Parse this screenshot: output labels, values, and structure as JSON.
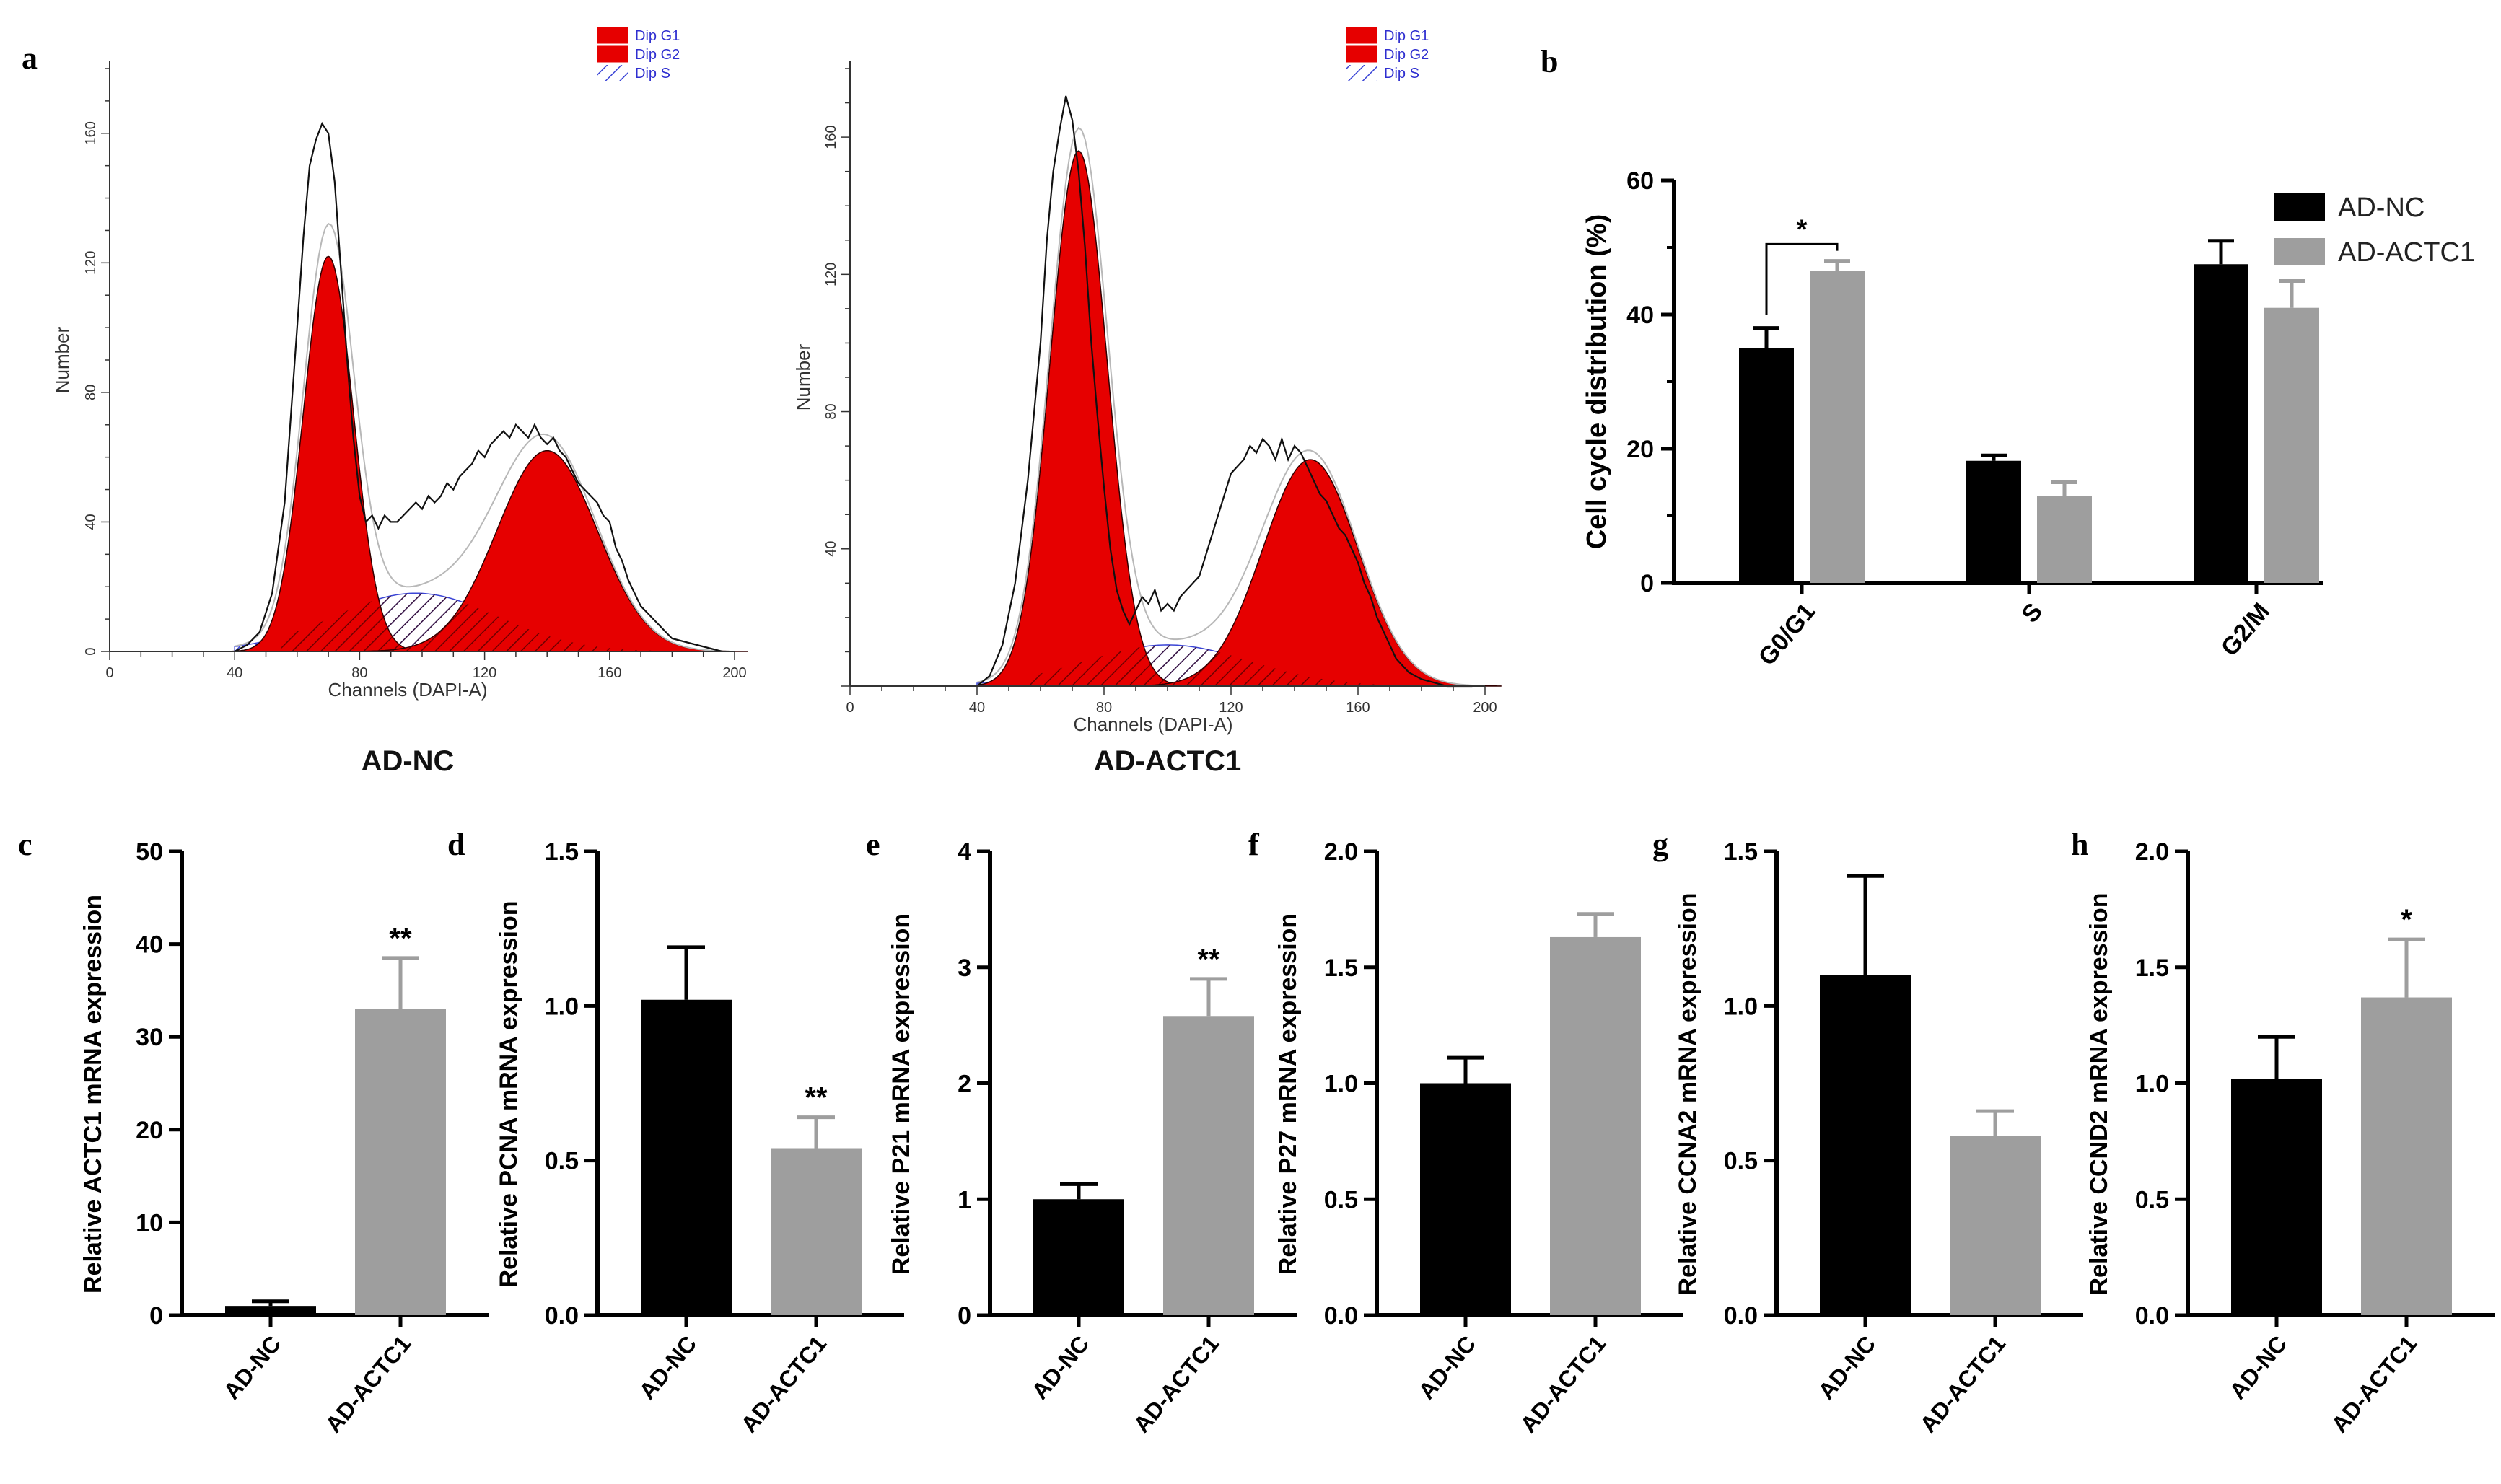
{
  "chart_data": [
    {
      "id": "a1",
      "panel_letter": "a",
      "type": "area",
      "title": "AD-NC",
      "xlabel": "Channels (DAPI-A)",
      "ylabel": "Number",
      "xlim": [
        0,
        200
      ],
      "ylim": [
        0,
        180
      ],
      "xticks": [
        0,
        40,
        80,
        120,
        160,
        200
      ],
      "yticks": [
        0,
        40,
        80,
        120,
        160
      ],
      "legend": [
        "Dip G1",
        "Dip G2",
        "Dip S"
      ],
      "g1": {
        "mu": 70,
        "sd": 8,
        "amp": 122
      },
      "g2": {
        "mu": 140,
        "sd": 16,
        "amp": 62
      },
      "s": {
        "mu": 98,
        "sd": 26,
        "amp": 18
      },
      "raw_x": [
        40,
        44,
        48,
        52,
        56,
        60,
        62,
        64,
        66,
        68,
        70,
        72,
        74,
        76,
        78,
        80,
        82,
        84,
        86,
        88,
        90,
        92,
        94,
        96,
        98,
        100,
        102,
        104,
        106,
        108,
        110,
        112,
        114,
        116,
        118,
        120,
        122,
        124,
        126,
        128,
        130,
        132,
        134,
        136,
        138,
        140,
        142,
        144,
        146,
        148,
        150,
        152,
        154,
        156,
        158,
        160,
        162,
        164,
        166,
        168,
        170,
        172,
        174,
        176,
        178,
        180,
        184,
        188,
        192,
        196
      ],
      "raw_y": [
        0,
        2,
        6,
        18,
        46,
        100,
        128,
        150,
        158,
        163,
        160,
        145,
        118,
        90,
        66,
        48,
        40,
        42,
        38,
        42,
        40,
        40,
        42,
        44,
        46,
        44,
        48,
        46,
        48,
        52,
        50,
        54,
        56,
        58,
        62,
        60,
        64,
        66,
        68,
        66,
        70,
        68,
        66,
        70,
        66,
        64,
        66,
        62,
        60,
        56,
        52,
        50,
        48,
        46,
        42,
        40,
        32,
        28,
        22,
        18,
        14,
        12,
        10,
        8,
        6,
        4,
        3,
        2,
        1,
        0
      ]
    },
    {
      "id": "a2",
      "type": "area",
      "title": "AD-ACTC1",
      "xlabel": "Channels (DAPI-A)",
      "ylabel": "Number",
      "xlim": [
        0,
        200
      ],
      "ylim": [
        0,
        180
      ],
      "xticks": [
        0,
        40,
        80,
        120,
        160,
        200
      ],
      "yticks": [
        40,
        80,
        120,
        160
      ],
      "legend": [
        "Dip G1",
        "Dip G2",
        "Dip S"
      ],
      "g1": {
        "mu": 72,
        "sd": 9,
        "amp": 156
      },
      "g2": {
        "mu": 145,
        "sd": 15,
        "amp": 66
      },
      "s": {
        "mu": 100,
        "sd": 26,
        "amp": 12
      },
      "raw_x": [
        40,
        44,
        48,
        52,
        56,
        60,
        62,
        64,
        66,
        68,
        70,
        72,
        74,
        76,
        78,
        80,
        82,
        84,
        86,
        88,
        90,
        92,
        94,
        96,
        98,
        100,
        102,
        104,
        106,
        108,
        110,
        112,
        114,
        116,
        118,
        120,
        122,
        124,
        126,
        128,
        130,
        132,
        134,
        136,
        138,
        140,
        142,
        144,
        146,
        148,
        150,
        152,
        154,
        156,
        158,
        160,
        162,
        164,
        166,
        168,
        170,
        172,
        174,
        176,
        178,
        180,
        184,
        188,
        192,
        196
      ],
      "raw_y": [
        0,
        3,
        12,
        30,
        60,
        100,
        130,
        150,
        162,
        172,
        165,
        150,
        128,
        100,
        78,
        58,
        40,
        28,
        22,
        18,
        22,
        26,
        24,
        28,
        22,
        24,
        22,
        26,
        28,
        30,
        32,
        38,
        44,
        50,
        56,
        62,
        64,
        66,
        70,
        68,
        72,
        70,
        66,
        72,
        66,
        70,
        68,
        64,
        60,
        56,
        54,
        50,
        46,
        44,
        40,
        36,
        30,
        26,
        20,
        16,
        12,
        8,
        6,
        4,
        3,
        2,
        1,
        0,
        0,
        0
      ]
    },
    {
      "id": "b",
      "panel_letter": "b",
      "type": "bar",
      "categories": [
        "G0/G1",
        "S",
        "G2/M"
      ],
      "series": [
        {
          "name": "AD-NC",
          "color": "#000000",
          "values": [
            35,
            18.2,
            47.5
          ],
          "errors": [
            3,
            0.8,
            3.5
          ]
        },
        {
          "name": "AD-ACTC1",
          "color": "#9e9e9e",
          "values": [
            46.5,
            13,
            41
          ],
          "errors": [
            1.5,
            2,
            4
          ]
        }
      ],
      "ylabel": "Cell cycle distribution (%)",
      "ylim": [
        0,
        60
      ],
      "yticks": [
        0,
        20,
        40,
        60
      ],
      "yticklabels": [
        "0",
        "20",
        "40",
        "60"
      ],
      "significance": "*"
    },
    {
      "id": "c",
      "panel_letter": "c",
      "type": "bar",
      "categories": [
        "AD-NC",
        "AD-ACTC1"
      ],
      "values": [
        1,
        33
      ],
      "errors": [
        0.5,
        5.5
      ],
      "colors": [
        "#000000",
        "#9e9e9e"
      ],
      "ylabel": "Relative ACTC1 mRNA expression",
      "ylim": [
        0,
        50
      ],
      "yticks": [
        0,
        10,
        20,
        30,
        40,
        50
      ],
      "yticklabels": [
        "0",
        "10",
        "20",
        "30",
        "40",
        "50"
      ],
      "significance": [
        null,
        "**"
      ]
    },
    {
      "id": "d",
      "panel_letter": "d",
      "type": "bar",
      "categories": [
        "AD-NC",
        "AD-ACTC1"
      ],
      "values": [
        1.02,
        0.54
      ],
      "errors": [
        0.17,
        0.1
      ],
      "colors": [
        "#000000",
        "#9e9e9e"
      ],
      "ylabel": "Relative PCNA mRNA expression",
      "ylim": [
        0,
        1.5
      ],
      "yticks": [
        0,
        0.5,
        1.0,
        1.5
      ],
      "yticklabels": [
        "0.0",
        "0.5",
        "1.0",
        "1.5"
      ],
      "significance": [
        null,
        "**"
      ]
    },
    {
      "id": "e",
      "panel_letter": "e",
      "type": "bar",
      "categories": [
        "AD-NC",
        "AD-ACTC1"
      ],
      "values": [
        1.0,
        2.58
      ],
      "errors": [
        0.13,
        0.32
      ],
      "colors": [
        "#000000",
        "#9e9e9e"
      ],
      "ylabel": "Relative P21 mRNA expression",
      "ylim": [
        0,
        4
      ],
      "yticks": [
        0,
        1,
        2,
        3,
        4
      ],
      "yticklabels": [
        "0",
        "1",
        "2",
        "3",
        "4"
      ],
      "significance": [
        null,
        "**"
      ]
    },
    {
      "id": "f",
      "panel_letter": "f",
      "type": "bar",
      "categories": [
        "AD-NC",
        "AD-ACTC1"
      ],
      "values": [
        1.0,
        1.63
      ],
      "errors": [
        0.11,
        0.1
      ],
      "colors": [
        "#000000",
        "#9e9e9e"
      ],
      "ylabel": "Relative P27 mRNA expression",
      "ylim": [
        0,
        2.0
      ],
      "yticks": [
        0,
        0.5,
        1.0,
        1.5,
        2.0
      ],
      "yticklabels": [
        "0.0",
        "0.5",
        "1.0",
        "1.5",
        "2.0"
      ],
      "significance": [
        null,
        null
      ]
    },
    {
      "id": "g",
      "panel_letter": "g",
      "type": "bar",
      "categories": [
        "AD-NC",
        "AD-ACTC1"
      ],
      "values": [
        1.1,
        0.58
      ],
      "errors": [
        0.32,
        0.08
      ],
      "colors": [
        "#000000",
        "#9e9e9e"
      ],
      "ylabel": "Relative CCNA2 mRNA expression",
      "ylim": [
        0,
        1.5
      ],
      "yticks": [
        0,
        0.5,
        1.0,
        1.5
      ],
      "yticklabels": [
        "0.0",
        "0.5",
        "1.0",
        "1.5"
      ],
      "significance": [
        null,
        null
      ]
    },
    {
      "id": "h",
      "panel_letter": "h",
      "type": "bar",
      "categories": [
        "AD-NC",
        "AD-ACTC1"
      ],
      "values": [
        1.02,
        1.37
      ],
      "errors": [
        0.18,
        0.25
      ],
      "colors": [
        "#000000",
        "#9e9e9e"
      ],
      "ylabel": "Relative CCND2 mRNA expression",
      "ylim": [
        0,
        2.0
      ],
      "yticks": [
        0,
        0.5,
        1.0,
        1.5,
        2.0
      ],
      "yticklabels": [
        "0.0",
        "0.5",
        "1.0",
        "1.5",
        "2.0"
      ],
      "significance": [
        null,
        "*"
      ]
    }
  ],
  "colors": {
    "g1_fill": "#e60000",
    "s_hatch": "#3b45d6",
    "nc": "#000000",
    "actc1": "#9e9e9e",
    "legend_text": "#2f2fd0"
  }
}
